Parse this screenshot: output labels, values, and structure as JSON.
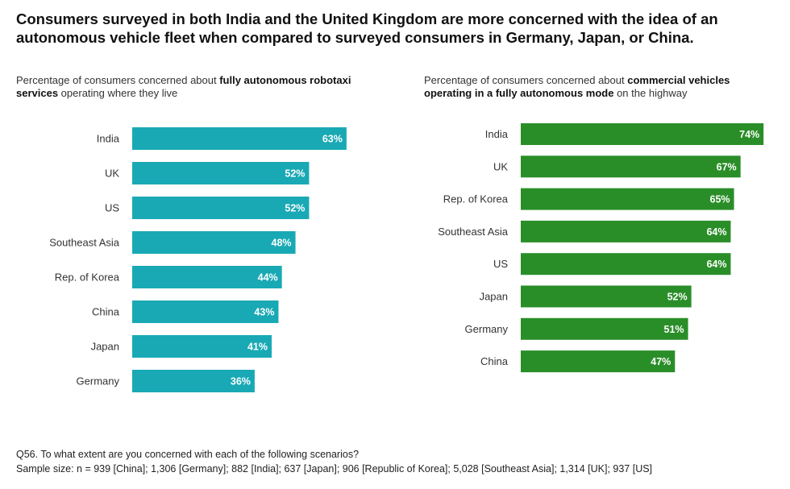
{
  "title": "Consumers surveyed in both India and the United Kingdom are more concerned with the idea of an autonomous vehicle fleet when compared to surveyed consumers in Germany, Japan, or China.",
  "charts": [
    {
      "subtitle_pre": "Percentage of consumers concerned about ",
      "subtitle_bold": "fully autonomous robotaxi services",
      "subtitle_post": " operating where they live"
    },
    {
      "subtitle_pre": "Percentage of consumers concerned about ",
      "subtitle_bold": "commercial vehicles operating in a fully autonomous mode",
      "subtitle_post": " on the highway"
    }
  ],
  "chart_data": [
    {
      "type": "bar",
      "orientation": "horizontal",
      "color": "#19a9b5",
      "categories": [
        "India",
        "UK",
        "US",
        "Southeast Asia",
        "Rep. of Korea",
        "China",
        "Japan",
        "Germany"
      ],
      "values": [
        63,
        52,
        52,
        48,
        44,
        43,
        41,
        36
      ],
      "value_labels": [
        "63%",
        "52%",
        "52%",
        "48%",
        "44%",
        "43%",
        "41%",
        "36%"
      ],
      "unit": "%",
      "xlim": [
        0,
        100
      ],
      "grid": false,
      "legend": "none"
    },
    {
      "type": "bar",
      "orientation": "horizontal",
      "color": "#2a8e28",
      "categories": [
        "India",
        "UK",
        "Rep. of Korea",
        "Southeast Asia",
        "US",
        "Japan",
        "Germany",
        "China"
      ],
      "values": [
        74,
        67,
        65,
        64,
        64,
        52,
        51,
        47
      ],
      "value_labels": [
        "74%",
        "67%",
        "65%",
        "64%",
        "64%",
        "52%",
        "51%",
        "47%"
      ],
      "unit": "%",
      "xlim": [
        0,
        100
      ],
      "grid": false,
      "legend": "none"
    }
  ],
  "footer": {
    "question": "Q56. To what extent are you concerned with each of the following scenarios?",
    "sample": "Sample size: n = 939 [China]; 1,306 [Germany]; 882 [India]; 637 [Japan]; 906 [Republic of Korea]; 5,028 [Southeast Asia]; 1,314 [UK]; 937 [US]"
  }
}
